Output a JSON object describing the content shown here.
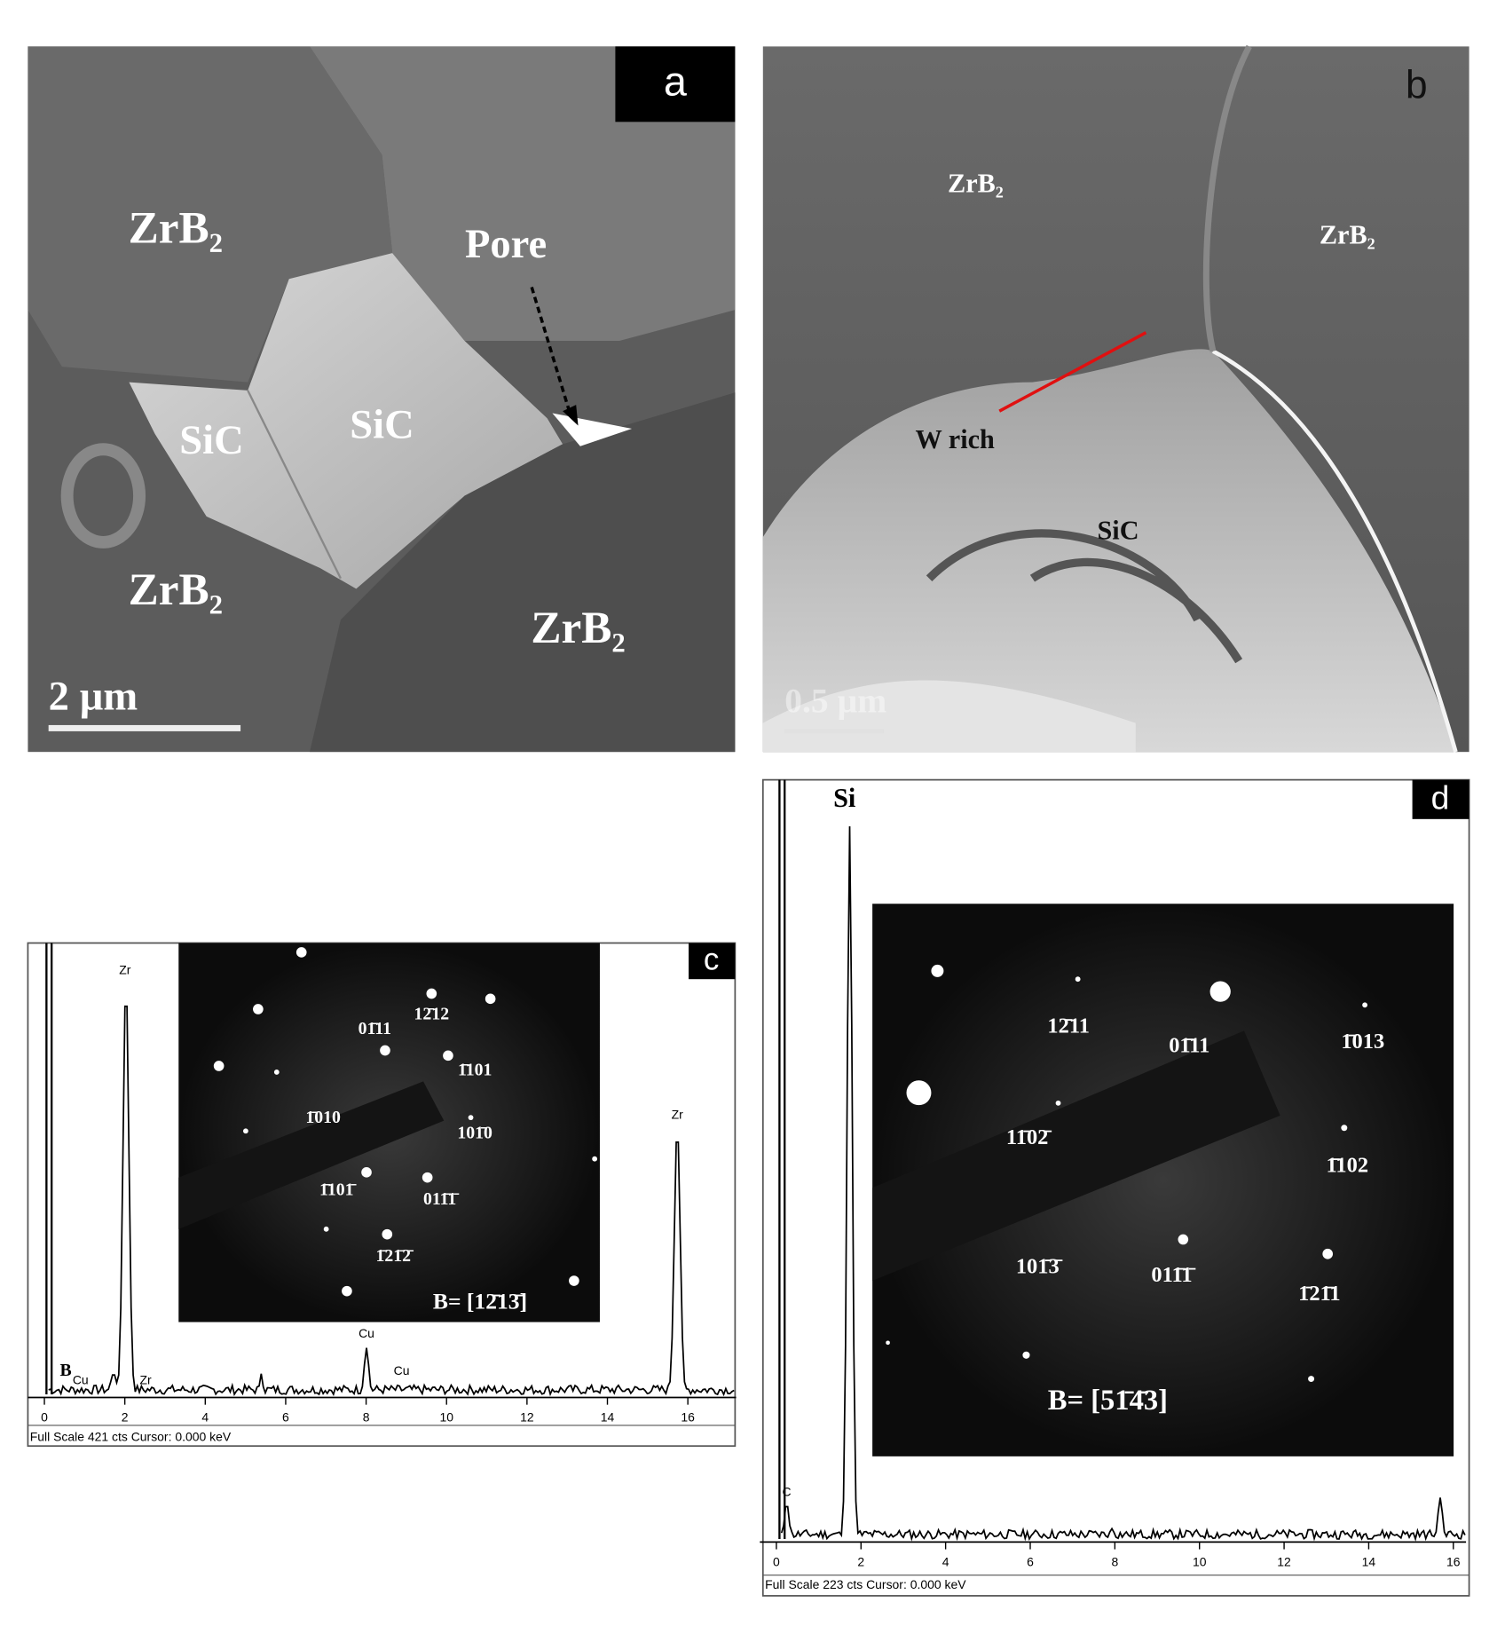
{
  "panels": [
    {
      "label": "a",
      "annotations": [
        "ZrB₂",
        "Pore",
        "SiC",
        "SiC",
        "ZrB₂",
        "ZrB₂"
      ],
      "scale_bar": "2 µm"
    },
    {
      "label": "b",
      "annotations": [
        "ZrB₂",
        "ZrB₂",
        "W rich",
        "SiC"
      ],
      "scale_bar": "0.5 µm"
    },
    {
      "label": "c",
      "spectrum": {
        "xlim": [
          0,
          17.2
        ],
        "xticks": [
          0,
          2,
          4,
          6,
          8,
          10,
          12,
          14,
          16
        ],
        "footer": "Full Scale 421 cts  Cursor: 0.000 keV",
        "peak_labels": [
          "Zr",
          "Zr",
          "Cu",
          "B",
          "Cu",
          "Zr",
          "Cu"
        ]
      },
      "inset": {
        "labels": [
          "01̄11",
          "12̄12",
          "1̄101",
          "1̄010",
          "101̄0",
          "1̄101̄",
          "011̄1̄",
          "1̄21̄2̄"
        ],
        "zone_axis": "B= [12̄13̄]"
      }
    },
    {
      "label": "d",
      "spectrum": {
        "xlim": [
          0,
          16.3
        ],
        "xticks": [
          0,
          2,
          4,
          6,
          8,
          10,
          12,
          14,
          16
        ],
        "footer": "Full Scale 223 cts  Cursor: 0.000 keV",
        "peak_labels": [
          "Si",
          "C"
        ]
      },
      "inset": {
        "labels": [
          "12̄11",
          "01̄11",
          "1̄013",
          "11̄02̄",
          "1̄102",
          "101̄3̄",
          "011̄1̄",
          "1̄21̄1"
        ],
        "zone_axis": "B= [51̄4̄3]"
      }
    }
  ]
}
